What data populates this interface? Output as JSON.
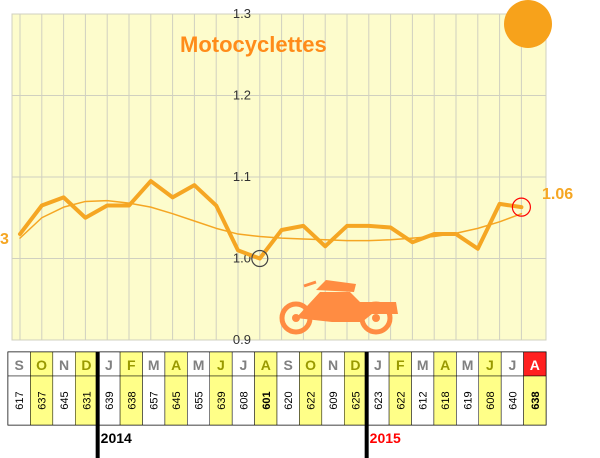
{
  "chart_data": {
    "type": "line",
    "title": "Motocyclettes",
    "ylim": [
      0.9,
      1.3
    ],
    "yticks": [
      "0.9",
      "1.0",
      "1.1",
      "1.2",
      "1.3"
    ],
    "grid": true,
    "categories": [
      "S",
      "O",
      "N",
      "D",
      "J",
      "F",
      "M",
      "A",
      "M",
      "J",
      "J",
      "A",
      "S",
      "O",
      "N",
      "D",
      "J",
      "F",
      "M",
      "A",
      "M",
      "J",
      "J",
      "A"
    ],
    "counts": [
      "617",
      "637",
      "645",
      "631",
      "639",
      "638",
      "657",
      "645",
      "655",
      "639",
      "608",
      "601",
      "620",
      "622",
      "609",
      "625",
      "623",
      "622",
      "612",
      "618",
      "619",
      "608",
      "640",
      "638"
    ],
    "years": [
      "2014",
      "2015"
    ],
    "series": [
      {
        "values": [
          1.03,
          1.065,
          1.075,
          1.05,
          1.065,
          1.065,
          1.095,
          1.075,
          1.09,
          1.065,
          1.01,
          1.0,
          1.035,
          1.04,
          1.015,
          1.04,
          1.04,
          1.038,
          1.02,
          1.03,
          1.03,
          1.012,
          1.067,
          1.063
        ]
      },
      {
        "values": [
          1.025,
          1.05,
          1.063,
          1.07,
          1.071,
          1.068,
          1.063,
          1.055,
          1.046,
          1.037,
          1.03,
          1.027,
          1.025,
          1.024,
          1.023,
          1.022,
          1.022,
          1.023,
          1.025,
          1.027,
          1.031,
          1.037,
          1.045,
          1.055
        ]
      }
    ],
    "annotations": {
      "start_value": "3",
      "end_value": "1.06"
    },
    "colors": {
      "line": "#f5a623",
      "title": "#ff8c1a",
      "plot_bg": "#fdfccc",
      "grid": "#d0d0c0",
      "highlight_cell": "#ffff88",
      "plain_cell": "#ffffff",
      "month_highlight_text": "#999900",
      "month_plain_text": "#808080",
      "last_month_bg": "#ff2020",
      "last_month_text": "#ffffff",
      "year_2015": "#ff0000",
      "year_2014": "#000000",
      "sun": "#f7a21b",
      "moto": "#ff8c42",
      "low_marker": "#444444",
      "end_marker": "#ff0000"
    },
    "icons": [
      "sun-icon",
      "motorcycle-icon"
    ]
  }
}
